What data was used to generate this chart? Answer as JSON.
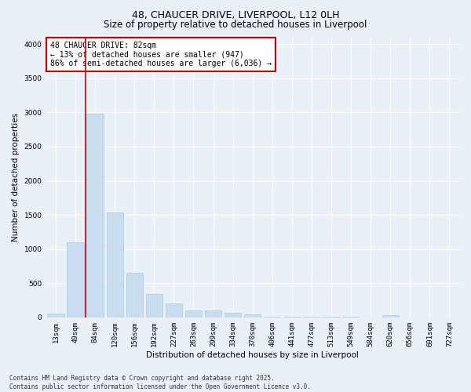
{
  "title": "48, CHAUCER DRIVE, LIVERPOOL, L12 0LH",
  "subtitle": "Size of property relative to detached houses in Liverpool",
  "xlabel": "Distribution of detached houses by size in Liverpool",
  "ylabel": "Number of detached properties",
  "categories": [
    "13sqm",
    "49sqm",
    "84sqm",
    "120sqm",
    "156sqm",
    "192sqm",
    "227sqm",
    "263sqm",
    "299sqm",
    "334sqm",
    "370sqm",
    "406sqm",
    "441sqm",
    "477sqm",
    "513sqm",
    "549sqm",
    "584sqm",
    "620sqm",
    "656sqm",
    "691sqm",
    "727sqm"
  ],
  "values": [
    50,
    1100,
    2980,
    1530,
    650,
    340,
    200,
    100,
    100,
    70,
    40,
    15,
    12,
    10,
    6,
    5,
    3,
    30,
    3,
    3,
    3
  ],
  "bar_color": "#c8ddf0",
  "bar_edge_color": "#aac8e0",
  "red_line_index": 2,
  "red_line_color": "#cc0000",
  "ylim": [
    0,
    4100
  ],
  "yticks": [
    0,
    500,
    1000,
    1500,
    2000,
    2500,
    3000,
    3500,
    4000
  ],
  "annotation_box_text": "48 CHAUCER DRIVE: 82sqm\n← 13% of detached houses are smaller (947)\n86% of semi-detached houses are larger (6,036) →",
  "annotation_box_color": "#ffffff",
  "annotation_box_edge_color": "#cc0000",
  "bg_color": "#eaf0f8",
  "grid_color": "#ffffff",
  "footer_line1": "Contains HM Land Registry data © Crown copyright and database right 2025.",
  "footer_line2": "Contains public sector information licensed under the Open Government Licence v3.0.",
  "title_fontsize": 9,
  "subtitle_fontsize": 8.5,
  "tick_fontsize": 6.5,
  "ylabel_fontsize": 7.5,
  "xlabel_fontsize": 7.5,
  "annotation_fontsize": 7,
  "footer_fontsize": 5.5
}
